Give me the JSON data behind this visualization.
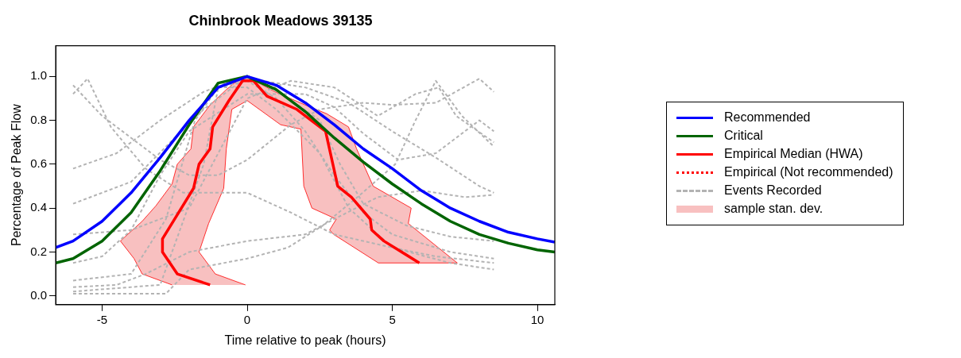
{
  "chart_data": {
    "type": "line",
    "title": "Chinbrook Meadows 39135",
    "xlabel": "Time relative to peak (hours)",
    "ylabel": "Percentage of Peak Flow",
    "xlim": [
      -6.6,
      10.6
    ],
    "xticks": [
      -5,
      0,
      5,
      10
    ],
    "ylim": [
      -0.04,
      1.14
    ],
    "yticks": [
      {
        "value": 0,
        "label": "0.0"
      },
      {
        "value": 0.2,
        "label": "0.2"
      },
      {
        "value": 0.4,
        "label": "0.4"
      },
      {
        "value": 0.6,
        "label": "0.6"
      },
      {
        "value": 0.8,
        "label": "0.8"
      },
      {
        "value": 1,
        "label": "1.0"
      }
    ],
    "grid": false,
    "legend": "right",
    "series": [
      {
        "name": "Recommended",
        "type": "line",
        "color": "#0000ff",
        "line_style": "solid",
        "x": [
          -6.6,
          -6,
          -5,
          -4,
          -3,
          -2,
          -1,
          0,
          1,
          2,
          3,
          4,
          5,
          6,
          7,
          8,
          9,
          10,
          10.6
        ],
        "values": [
          0.22,
          0.25,
          0.34,
          0.47,
          0.63,
          0.8,
          0.95,
          1.0,
          0.96,
          0.88,
          0.78,
          0.67,
          0.58,
          0.48,
          0.4,
          0.34,
          0.29,
          0.26,
          0.245
        ]
      },
      {
        "name": "Critical",
        "type": "line",
        "color": "#006400",
        "line_style": "solid",
        "x": [
          -6.6,
          -6,
          -5,
          -4,
          -3,
          -2,
          -1,
          0,
          1,
          2,
          3,
          4,
          5,
          6,
          7,
          8,
          9,
          10,
          10.6
        ],
        "values": [
          0.15,
          0.17,
          0.25,
          0.38,
          0.57,
          0.78,
          0.97,
          1.0,
          0.94,
          0.84,
          0.72,
          0.61,
          0.51,
          0.42,
          0.34,
          0.28,
          0.24,
          0.21,
          0.2
        ]
      },
      {
        "name": "Empirical Median (HWA)",
        "type": "line",
        "color": "#ff0000",
        "line_style": "solid",
        "x": [
          -1.28,
          -2.41,
          -2.92,
          -2.92,
          -1.85,
          -1.66,
          -1.28,
          -1.19,
          -0.63,
          -0.16,
          0.22,
          0.68,
          1.71,
          2.7,
          3.12,
          3.59,
          4.24,
          4.29,
          4.71,
          5.93
        ],
        "values": [
          0.05,
          0.1,
          0.2,
          0.26,
          0.49,
          0.6,
          0.67,
          0.77,
          0.89,
          0.98,
          0.98,
          0.91,
          0.85,
          0.75,
          0.5,
          0.45,
          0.35,
          0.3,
          0.25,
          0.15
        ]
      },
      {
        "name": "Empirical (Not recommended)",
        "color": "#ff0000",
        "line_style": "dotted"
      },
      {
        "name": "Events Recorded",
        "type": "line",
        "color": "#b3b3b3",
        "line_style": "dashed",
        "x": [
          -6,
          -5.5,
          -4.7,
          -3.5,
          -2.2,
          0,
          1.5,
          3,
          5,
          6.5,
          8.5
        ],
        "values": [
          0.92,
          0.99,
          0.77,
          0.58,
          0.47,
          0.47,
          0.38,
          0.28,
          0.22,
          0.18,
          0.15
        ]
      },
      {
        "type": "line",
        "color": "#b3b3b3",
        "line_style": "dashed",
        "x": [
          -6,
          -2.8,
          -2,
          0,
          1.4,
          2.6,
          3.8,
          5.1,
          5.8,
          6.5,
          7.4,
          8.5
        ],
        "values": [
          0.01,
          0.01,
          0.12,
          0.17,
          0.22,
          0.32,
          0.45,
          0.6,
          0.8,
          0.98,
          0.82,
          0.68
        ]
      },
      {
        "type": "line",
        "color": "#b3b3b3",
        "line_style": "dashed",
        "x": [
          -6,
          -3,
          -1.5,
          -1,
          0,
          1,
          2,
          3,
          4,
          5,
          7,
          8.5
        ],
        "values": [
          0.02,
          0.05,
          0.6,
          0.95,
          0.98,
          0.9,
          0.75,
          0.55,
          0.38,
          0.28,
          0.2,
          0.17
        ]
      },
      {
        "type": "line",
        "color": "#b3b3b3",
        "line_style": "dashed",
        "x": [
          -6,
          -4.5,
          -3,
          -1.5,
          -0.5,
          0.5,
          2,
          3.5,
          5,
          6.5,
          8,
          8.5
        ],
        "values": [
          0.58,
          0.65,
          0.8,
          0.93,
          0.98,
          0.98,
          0.95,
          0.88,
          0.75,
          0.63,
          0.5,
          0.47
        ]
      },
      {
        "type": "line",
        "color": "#b3b3b3",
        "line_style": "dashed",
        "x": [
          -6,
          -4,
          -2.5,
          -1.5,
          0,
          1.2,
          2.5,
          3.2,
          4,
          5.5,
          7,
          8.5
        ],
        "values": [
          0.42,
          0.52,
          0.72,
          0.85,
          1.0,
          0.92,
          0.8,
          0.6,
          0.42,
          0.32,
          0.27,
          0.25
        ]
      },
      {
        "type": "line",
        "color": "#b3b3b3",
        "line_style": "dashed",
        "x": [
          -6,
          -4,
          -2.8,
          -1.8,
          -1,
          0,
          1,
          2.5,
          3.5,
          5,
          7,
          8.5
        ],
        "values": [
          0.07,
          0.1,
          0.35,
          0.8,
          0.95,
          0.95,
          0.85,
          0.65,
          0.4,
          0.22,
          0.15,
          0.12
        ]
      },
      {
        "type": "line",
        "color": "#b3b3b3",
        "line_style": "dashed",
        "x": [
          -6,
          -4,
          -2,
          0,
          1.5,
          3,
          4.5,
          5.8,
          6.6,
          7.2,
          8.5
        ],
        "values": [
          0.28,
          0.3,
          0.4,
          0.9,
          0.98,
          0.95,
          0.82,
          0.92,
          0.95,
          0.82,
          0.7
        ]
      },
      {
        "type": "line",
        "color": "#b3b3b3",
        "line_style": "dashed",
        "x": [
          -6,
          -5,
          -4,
          -3,
          -2,
          0,
          2,
          3,
          4,
          5.2,
          6.5,
          8,
          8.5
        ],
        "values": [
          0.15,
          0.18,
          0.3,
          0.55,
          0.75,
          0.92,
          0.92,
          0.86,
          0.74,
          0.62,
          0.65,
          0.8,
          0.75
        ]
      },
      {
        "type": "line",
        "color": "#b3b3b3",
        "line_style": "dashed",
        "x": [
          -6,
          -4.5,
          -3.5,
          -2,
          0,
          2,
          3,
          4.5,
          6,
          7.5,
          8.5
        ],
        "values": [
          0.04,
          0.05,
          0.1,
          0.2,
          0.25,
          0.28,
          0.35,
          0.45,
          0.48,
          0.45,
          0.46
        ]
      },
      {
        "type": "line",
        "color": "#b3b3b3",
        "line_style": "dashed",
        "x": [
          -6,
          -5,
          -4,
          -3,
          -2,
          -1,
          0,
          1.5,
          2.5,
          4,
          5,
          6.5,
          8,
          8.5
        ],
        "values": [
          0.96,
          0.82,
          0.72,
          0.62,
          0.55,
          0.55,
          0.62,
          0.78,
          0.85,
          0.88,
          0.87,
          0.88,
          0.99,
          0.93
        ]
      },
      {
        "name": "sample stan. dev.",
        "type": "area",
        "color": "#f8c0c0",
        "x": [
          -2.59,
          -3.62,
          -3.9,
          -4.37,
          -3.62,
          -3.15,
          -2.59,
          -2.41,
          -1.94,
          -1.85,
          -1.28,
          -0.72,
          -0.16,
          0.0,
          0.4,
          0.96,
          2.0,
          2.74,
          3.49,
          3.77,
          4.34,
          5.65,
          5.55,
          7.24,
          4.52,
          2.98,
          2.84,
          3.07,
          2.23,
          1.95,
          1.85,
          1.15,
          0.0,
          -0.53,
          -0.72,
          -0.81,
          -1.33,
          -1.66,
          -1.1,
          -0.06
        ],
        "values": [
          0.05,
          0.1,
          0.17,
          0.25,
          0.34,
          0.41,
          0.51,
          0.6,
          0.67,
          0.77,
          0.87,
          0.94,
          1.0,
          1.0,
          0.97,
          0.93,
          0.87,
          0.83,
          0.77,
          0.67,
          0.5,
          0.4,
          0.33,
          0.15,
          0.15,
          0.28,
          0.3,
          0.35,
          0.4,
          0.5,
          0.76,
          0.78,
          0.89,
          0.85,
          0.67,
          0.49,
          0.33,
          0.2,
          0.1,
          0.05
        ]
      }
    ]
  }
}
